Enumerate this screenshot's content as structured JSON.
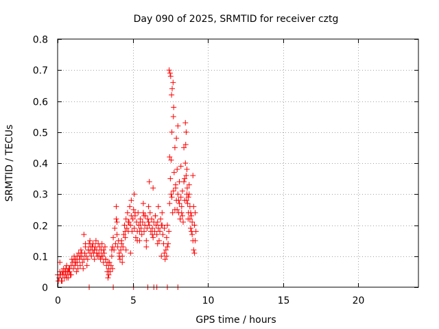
{
  "chart_data": {
    "type": "scatter",
    "title": "Day 090 of 2025, SRMTID for receiver cztg",
    "xlabel": "GPS time / hours",
    "ylabel": "SRMTID / TECUs",
    "xlim": [
      0,
      24
    ],
    "ylim": [
      0,
      0.8
    ],
    "grid": true,
    "marker": "+",
    "x_ticks": [
      0,
      5,
      10,
      15,
      20
    ],
    "x_tick_labels": [
      "0",
      "5",
      "10",
      "15",
      "20"
    ],
    "y_ticks": [
      0,
      0.1,
      0.2,
      0.3,
      0.4,
      0.5,
      0.6,
      0.7,
      0.8
    ],
    "y_tick_labels": [
      "0",
      "0.1",
      "0.2",
      "0.3",
      "0.4",
      "0.5",
      "0.6",
      "0.7",
      "0.8"
    ],
    "series": [
      {
        "name": "SRMTID",
        "color": "#ff0000",
        "x": [
          0.0,
          0.1,
          0.15,
          0.2,
          0.25,
          0.3,
          0.35,
          0.4,
          0.45,
          0.5,
          0.55,
          0.6,
          0.65,
          0.7,
          0.75,
          0.8,
          0.85,
          0.9,
          0.95,
          1.0,
          1.05,
          1.1,
          1.15,
          1.2,
          1.25,
          1.3,
          1.35,
          1.4,
          1.45,
          1.5,
          1.55,
          1.6,
          1.65,
          1.7,
          1.75,
          1.8,
          1.85,
          1.9,
          1.95,
          2.0,
          2.05,
          2.1,
          2.15,
          2.2,
          2.25,
          2.3,
          2.35,
          2.4,
          2.45,
          2.5,
          2.55,
          2.6,
          2.65,
          2.7,
          2.75,
          2.8,
          2.85,
          2.9,
          2.95,
          3.0,
          3.05,
          3.1,
          3.15,
          3.2,
          3.25,
          3.3,
          3.35,
          3.4,
          3.45,
          3.5,
          3.55,
          3.6,
          3.65,
          3.7,
          3.75,
          3.8,
          3.85,
          3.9,
          3.95,
          4.0,
          4.05,
          4.1,
          4.15,
          4.2,
          4.25,
          4.3,
          4.35,
          4.4,
          4.45,
          4.5,
          4.55,
          4.6,
          4.65,
          4.7,
          4.75,
          4.8,
          4.85,
          4.9,
          4.95,
          5.0,
          5.05,
          5.1,
          5.15,
          5.2,
          5.25,
          5.3,
          5.35,
          5.4,
          5.45,
          5.5,
          5.55,
          5.6,
          5.65,
          5.7,
          5.75,
          5.8,
          5.85,
          5.9,
          5.95,
          6.0,
          6.05,
          6.1,
          6.15,
          6.2,
          6.25,
          6.3,
          6.35,
          6.4,
          6.45,
          6.5,
          6.55,
          6.6,
          6.65,
          6.7,
          6.75,
          6.8,
          6.85,
          6.9,
          6.95,
          7.0,
          7.05,
          7.1,
          7.15,
          7.2,
          7.25,
          7.3,
          7.35,
          7.4,
          7.45,
          7.5,
          7.55,
          7.6,
          7.65,
          7.7,
          7.75,
          7.8,
          7.85,
          7.9,
          7.95,
          8.0,
          8.05,
          8.1,
          8.15,
          8.2,
          8.25,
          8.3,
          8.35,
          8.4,
          8.45,
          8.5,
          8.55,
          8.6,
          8.65,
          8.7,
          8.75,
          8.8,
          8.85,
          8.9,
          8.95,
          9.0,
          9.05,
          9.1,
          9.15,
          9.2,
          0.05,
          0.2,
          0.4,
          0.6,
          0.8,
          1.1,
          1.3,
          1.6,
          1.75,
          2.05,
          2.3,
          2.6,
          2.9,
          3.2,
          3.4,
          3.6,
          3.9,
          4.1,
          4.3,
          4.5,
          4.7,
          4.9,
          5.1,
          5.3,
          5.5,
          5.7,
          5.9,
          6.1,
          6.3,
          6.5,
          6.7,
          6.9,
          7.1,
          7.3,
          7.45,
          7.55,
          7.6,
          7.7,
          7.8,
          7.9,
          8.0,
          8.1,
          8.2,
          8.3,
          8.4,
          8.5,
          8.55,
          8.6,
          8.7,
          8.8,
          8.9,
          9.0,
          9.1,
          0.3,
          0.55,
          0.9,
          1.2,
          1.5,
          1.85,
          2.15,
          2.45,
          2.75,
          3.05,
          3.35,
          3.65,
          3.95,
          4.25,
          4.55,
          4.85,
          5.15,
          5.45,
          5.75,
          6.05,
          6.35,
          6.65,
          6.95,
          7.25,
          7.42,
          7.48,
          7.52,
          7.58,
          7.62,
          7.68,
          7.72,
          7.85,
          7.95,
          8.05,
          8.15,
          8.25,
          8.35,
          8.45,
          8.52,
          8.58,
          8.62,
          8.68,
          8.75,
          8.85,
          8.95,
          9.05,
          9.15,
          0.15,
          0.7,
          2.1,
          3.7,
          5.05,
          6.0,
          6.4,
          6.6,
          7.3,
          8.0
        ],
        "y": [
          0.04,
          0.03,
          0.05,
          0.04,
          0.02,
          0.05,
          0.04,
          0.06,
          0.03,
          0.05,
          0.04,
          0.07,
          0.05,
          0.03,
          0.06,
          0.05,
          0.04,
          0.07,
          0.09,
          0.08,
          0.06,
          0.1,
          0.07,
          0.09,
          0.05,
          0.08,
          0.06,
          0.11,
          0.09,
          0.07,
          0.12,
          0.1,
          0.08,
          0.06,
          0.09,
          0.11,
          0.13,
          0.1,
          0.07,
          0.09,
          0.12,
          0.14,
          0.11,
          0.13,
          0.1,
          0.12,
          0.14,
          0.11,
          0.09,
          0.13,
          0.15,
          0.12,
          0.1,
          0.14,
          0.11,
          0.13,
          0.09,
          0.12,
          0.14,
          0.1,
          0.08,
          0.11,
          0.13,
          0.09,
          0.07,
          0.05,
          0.03,
          0.06,
          0.08,
          0.05,
          0.07,
          0.1,
          0.13,
          0.16,
          0.12,
          0.19,
          0.14,
          0.22,
          0.17,
          0.13,
          0.15,
          0.11,
          0.09,
          0.12,
          0.14,
          0.1,
          0.13,
          0.17,
          0.2,
          0.16,
          0.22,
          0.19,
          0.24,
          0.18,
          0.21,
          0.26,
          0.2,
          0.23,
          0.18,
          0.22,
          0.25,
          0.19,
          0.23,
          0.16,
          0.21,
          0.18,
          0.24,
          0.2,
          0.15,
          0.22,
          0.19,
          0.17,
          0.21,
          0.24,
          0.18,
          0.2,
          0.23,
          0.15,
          0.19,
          0.22,
          0.26,
          0.2,
          0.24,
          0.18,
          0.22,
          0.19,
          0.16,
          0.21,
          0.18,
          0.23,
          0.2,
          0.17,
          0.21,
          0.19,
          0.15,
          0.18,
          0.22,
          0.2,
          0.24,
          0.17,
          0.14,
          0.11,
          0.09,
          0.12,
          0.16,
          0.2,
          0.14,
          0.18,
          0.27,
          0.35,
          0.41,
          0.29,
          0.24,
          0.31,
          0.37,
          0.45,
          0.33,
          0.28,
          0.38,
          0.3,
          0.24,
          0.27,
          0.22,
          0.29,
          0.26,
          0.31,
          0.21,
          0.34,
          0.28,
          0.4,
          0.36,
          0.3,
          0.27,
          0.24,
          0.33,
          0.26,
          0.19,
          0.23,
          0.17,
          0.15,
          0.12,
          0.2,
          0.24,
          0.18,
          0.02,
          0.04,
          0.05,
          0.03,
          0.06,
          0.09,
          0.1,
          0.11,
          0.17,
          0.12,
          0.13,
          0.11,
          0.1,
          0.09,
          0.04,
          0.12,
          0.26,
          0.1,
          0.08,
          0.18,
          0.21,
          0.28,
          0.3,
          0.15,
          0.21,
          0.27,
          0.13,
          0.34,
          0.17,
          0.23,
          0.26,
          0.1,
          0.19,
          0.13,
          0.42,
          0.3,
          0.5,
          0.55,
          0.25,
          0.48,
          0.52,
          0.34,
          0.39,
          0.23,
          0.45,
          0.53,
          0.5,
          0.38,
          0.29,
          0.22,
          0.18,
          0.36,
          0.11,
          0.02,
          0.06,
          0.04,
          0.08,
          0.1,
          0.14,
          0.15,
          0.12,
          0.1,
          0.12,
          0.08,
          0.06,
          0.21,
          0.15,
          0.12,
          0.11,
          0.24,
          0.18,
          0.23,
          0.21,
          0.32,
          0.14,
          0.2,
          0.1,
          0.7,
          0.69,
          0.68,
          0.62,
          0.64,
          0.66,
          0.58,
          0.32,
          0.25,
          0.28,
          0.22,
          0.24,
          0.21,
          0.35,
          0.46,
          0.28,
          0.32,
          0.22,
          0.3,
          0.24,
          0.21,
          0.26,
          0.15,
          0.08,
          0.05,
          0.0,
          0.0,
          0.0,
          0.0,
          0.0,
          0.0,
          0.0,
          0.0
        ]
      }
    ]
  }
}
